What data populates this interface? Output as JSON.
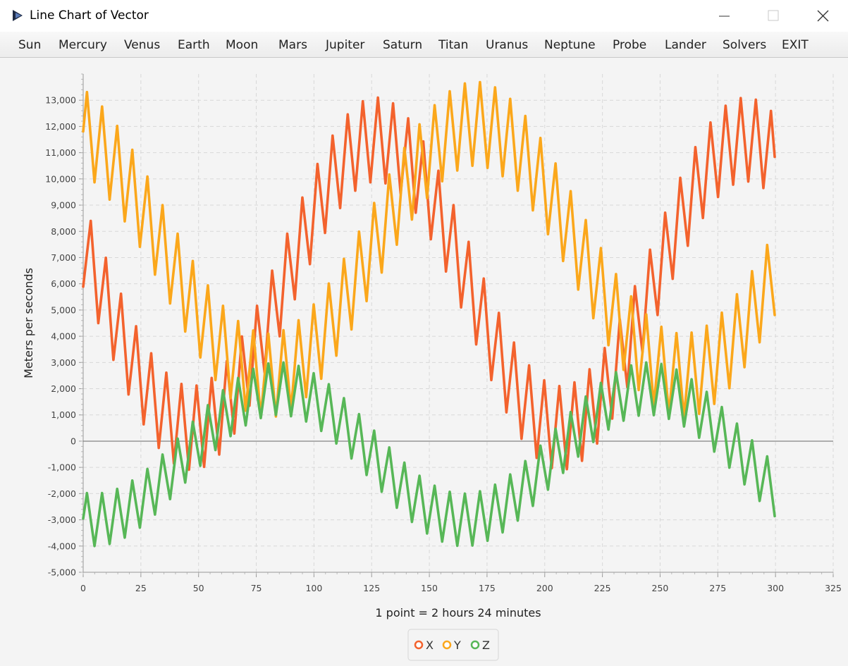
{
  "window": {
    "title": "Line Chart of Vector"
  },
  "menu": [
    "Sun",
    "Mercury",
    "Venus",
    "Earth",
    "Moon",
    "Mars",
    "Jupiter",
    "Saturn",
    "Titan",
    "Uranus",
    "Neptune",
    "Probe",
    "Lander",
    "Solvers",
    "EXIT"
  ],
  "chart_data": {
    "type": "line",
    "xlabel": "1 point = 2 hours 24 minutes",
    "ylabel": "Meters per seconds",
    "x": [
      0,
      1.64,
      3.28,
      4.91,
      6.55,
      8.19,
      9.83,
      11.46,
      13.1,
      14.74,
      16.38,
      18.01,
      19.65,
      21.29,
      22.93,
      24.56,
      26.2,
      27.84,
      29.48,
      31.11,
      32.75,
      34.39,
      36.03,
      37.66,
      39.3,
      40.94,
      42.58,
      44.21,
      45.85,
      47.49,
      49.13,
      50.76,
      52.4,
      54.04,
      55.68,
      57.31,
      58.95,
      60.59,
      62.23,
      63.86,
      65.5,
      67.14,
      68.78,
      70.41,
      72.05,
      73.69,
      75.33,
      76.96,
      78.6,
      80.24,
      81.88,
      83.51,
      85.15,
      86.79,
      88.43,
      90.06,
      91.7,
      93.34,
      94.98,
      96.61,
      98.25,
      99.89,
      101.53,
      103.16,
      104.8,
      106.44,
      108.08,
      109.71,
      111.35,
      112.99,
      114.63,
      116.26,
      117.9,
      119.54,
      121.18,
      122.81,
      124.45,
      126.09,
      127.73,
      129.36,
      131,
      132.64,
      134.28,
      135.91,
      137.55,
      139.19,
      140.83,
      142.46,
      144.1,
      145.74,
      147.38,
      149.01,
      150.65,
      152.29,
      153.93,
      155.56,
      157.2,
      158.84,
      160.48,
      162.11,
      163.75,
      165.39,
      167.03,
      168.66,
      170.3,
      171.94,
      173.58,
      175.21,
      176.85,
      178.49,
      180.13,
      181.76,
      183.4,
      185.04,
      186.68,
      188.31,
      189.95,
      191.59,
      193.23,
      194.86,
      196.5,
      198.14,
      199.78,
      201.41,
      203.05,
      204.69,
      206.33,
      207.96,
      209.6,
      211.24,
      212.88,
      214.51,
      216.15,
      217.79,
      219.43,
      221.06,
      222.7,
      224.34,
      225.98,
      227.61,
      229.25,
      230.89,
      232.53,
      234.16,
      235.8,
      237.44,
      239.08,
      240.71,
      242.35,
      243.99,
      245.63,
      247.26,
      248.9,
      250.54,
      252.18,
      253.81,
      255.45,
      257.09,
      258.73,
      260.36,
      262,
      263.64,
      265.28,
      266.91,
      268.55,
      270.19,
      271.83,
      273.46,
      275.1,
      276.74,
      278.38,
      280.01,
      281.65,
      283.29,
      284.93,
      286.56,
      288.2,
      289.84,
      291.48,
      293.11,
      294.75,
      296.39,
      298.03,
      299.66
    ],
    "series": [
      {
        "name": "X",
        "color": "#f3622d",
        "values": [
          5890,
          7150,
          8400,
          6450,
          4500,
          5740,
          6990,
          5040,
          3100,
          4360,
          5620,
          3700,
          1780,
          3070,
          4380,
          2500,
          640,
          1990,
          3350,
          1530,
          -260,
          1160,
          2610,
          870,
          -850,
          650,
          2180,
          530,
          -1090,
          500,
          2120,
          560,
          -980,
          710,
          2410,
          950,
          -510,
          1270,
          3050,
          1660,
          290,
          2130,
          3990,
          2660,
          1350,
          3260,
          5160,
          3890,
          2620,
          4550,
          6500,
          5250,
          4000,
          5950,
          7910,
          6660,
          5410,
          7350,
          9290,
          8020,
          6750,
          8660,
          10570,
          9260,
          7940,
          9800,
          11650,
          10280,
          8890,
          10690,
          12460,
          11020,
          9550,
          11260,
          12960,
          11420,
          9870,
          11500,
          13100,
          11480,
          9830,
          11370,
          12880,
          11170,
          9440,
          10880,
          12310,
          10520,
          8710,
          10080,
          11430,
          9580,
          7700,
          9010,
          10310,
          8390,
          6470,
          7740,
          9000,
          7050,
          5100,
          6350,
          7600,
          5640,
          3690,
          4940,
          6200,
          4260,
          2330,
          3610,
          4890,
          2990,
          1100,
          2430,
          3760,
          1920,
          90,
          1480,
          2890,
          1120,
          -640,
          830,
          2320,
          630,
          -1030,
          520,
          2100,
          510,
          -1070,
          580,
          2240,
          740,
          -750,
          980,
          2740,
          1310,
          -90,
          1720,
          3550,
          2200,
          860,
          2740,
          4640,
          3340,
          2050,
          3980,
          5910,
          4650,
          3390,
          5350,
          7300,
          6050,
          4810,
          6750,
          8710,
          7450,
          6190,
          8120,
          10040,
          8750,
          7450,
          9340,
          11210,
          9870,
          8510,
          10340,
          12150,
          10740,
          9310,
          11060,
          12790,
          11290,
          9780,
          11440,
          13080,
          11500,
          9900,
          11470,
          13020,
          11350,
          9650,
          11130,
          12590,
          10840
        ]
      },
      {
        "name": "Y",
        "color": "#fba71b",
        "values": [
          11810,
          13310,
          11600,
          9870,
          11320,
          12760,
          11000,
          9210,
          10620,
          12020,
          10200,
          8380,
          9750,
          11110,
          9260,
          7410,
          8750,
          10090,
          8220,
          6350,
          7670,
          9000,
          7130,
          5250,
          6580,
          7910,
          6050,
          4180,
          5520,
          6870,
          5030,
          3190,
          4560,
          5940,
          4130,
          2330,
          3740,
          5160,
          3390,
          1640,
          3100,
          4580,
          2870,
          1160,
          2680,
          4220,
          2560,
          930,
          2500,
          4100,
          2510,
          940,
          2580,
          4230,
          2710,
          1190,
          2890,
          4610,
          3140,
          1680,
          3440,
          5210,
          3790,
          2380,
          4190,
          6010,
          4630,
          3260,
          5100,
          6950,
          5600,
          4260,
          6120,
          7990,
          6660,
          5340,
          7210,
          9080,
          7760,
          6430,
          8300,
          10170,
          8830,
          7490,
          9340,
          11180,
          9820,
          8450,
          10270,
          12080,
          10680,
          9270,
          11050,
          12810,
          11370,
          9910,
          11630,
          13340,
          11840,
          10320,
          11990,
          13640,
          12080,
          10500,
          12100,
          13690,
          12060,
          10420,
          11970,
          13490,
          11800,
          10100,
          11590,
          13050,
          11310,
          9550,
          10980,
          12400,
          10610,
          8800,
          10190,
          11560,
          9730,
          7890,
          9240,
          10590,
          8730,
          6870,
          8200,
          9530,
          7660,
          5780,
          7110,
          8430,
          6560,
          4690,
          6020,
          7360,
          5510,
          3660,
          5010,
          6370,
          4550,
          2720,
          4110,
          5520,
          3720,
          1950,
          3380,
          4830,
          3090,
          1370,
          2860,
          4360,
          2680,
          1010,
          2560,
          4120,
          2510,
          900,
          2510,
          4140,
          2580,
          1040,
          2710,
          4400,
          2900,
          1420,
          3150,
          4900,
          3460,
          2020,
          3810,
          5600,
          4200,
          2820,
          4650,
          6480,
          5120,
          3770,
          5620,
          7480,
          6140,
          4810
        ]
      },
      {
        "name": "Z",
        "color": "#57b757",
        "values": [
          -2950,
          -1980,
          -3000,
          -4000,
          -3000,
          -1980,
          -2960,
          -3920,
          -2880,
          -1820,
          -2760,
          -3680,
          -2600,
          -1500,
          -2400,
          -3300,
          -2180,
          -1060,
          -1930,
          -2800,
          -1660,
          -510,
          -1360,
          -2210,
          -1060,
          100,
          -740,
          -1580,
          -420,
          740,
          -100,
          -940,
          220,
          1370,
          520,
          -340,
          800,
          1940,
          1070,
          190,
          1300,
          2410,
          1510,
          600,
          1680,
          2760,
          1820,
          880,
          1920,
          2960,
          1980,
          1000,
          2000,
          3000,
          1980,
          950,
          1920,
          2870,
          1810,
          750,
          1670,
          2590,
          1490,
          390,
          1280,
          2170,
          1040,
          -90,
          780,
          1640,
          490,
          -660,
          190,
          1030,
          -130,
          -1290,
          -450,
          400,
          -770,
          -1930,
          -1080,
          -240,
          -1390,
          -2540,
          -1680,
          -820,
          -1960,
          -3080,
          -2200,
          -1320,
          -2430,
          -3520,
          -2610,
          -1700,
          -2770,
          -3830,
          -2880,
          -1930,
          -2960,
          -3990,
          -3000,
          -2000,
          -2990,
          -3980,
          -2950,
          -1910,
          -2860,
          -3800,
          -2740,
          -1660,
          -2570,
          -3480,
          -2380,
          -1270,
          -2150,
          -3030,
          -1900,
          -760,
          -1620,
          -2470,
          -1320,
          -170,
          -1010,
          -1850,
          -690,
          470,
          -370,
          -1210,
          -50,
          1110,
          260,
          -590,
          560,
          1700,
          840,
          -30,
          1100,
          2220,
          1330,
          440,
          1540,
          2630,
          1710,
          780,
          1840,
          2890,
          1930,
          970,
          1990,
          3000,
          2000,
          990,
          1970,
          2940,
          1900,
          850,
          1790,
          2730,
          1650,
          560,
          1470,
          2360,
          1250,
          130,
          1010,
          1880,
          740,
          -400,
          450,
          1300,
          150,
          -1010,
          -170,
          670,
          -490,
          -1650,
          -810,
          30,
          -1130,
          -2280,
          -1430,
          -580,
          -1720,
          -2860
        ]
      }
    ],
    "xlim": [
      0,
      325
    ],
    "xticks": [
      0,
      25,
      50,
      75,
      100,
      125,
      150,
      175,
      200,
      225,
      250,
      275,
      300,
      325
    ],
    "ylim": [
      -5000,
      14000
    ],
    "yticks": [
      {
        "value": -5000,
        "label": "-5,000"
      },
      {
        "value": -4000,
        "label": "-4,000"
      },
      {
        "value": -3000,
        "label": "-3,000"
      },
      {
        "value": -2000,
        "label": "-2,000"
      },
      {
        "value": -1000,
        "label": "-1,000"
      },
      0,
      {
        "value": 1000,
        "label": "1,000"
      },
      {
        "value": 2000,
        "label": "2,000"
      },
      {
        "value": 3000,
        "label": "3,000"
      },
      {
        "value": 4000,
        "label": "4,000"
      },
      {
        "value": 5000,
        "label": "5,000"
      },
      {
        "value": 6000,
        "label": "6,000"
      },
      {
        "value": 7000,
        "label": "7,000"
      },
      {
        "value": 8000,
        "label": "8,000"
      },
      {
        "value": 9000,
        "label": "9,000"
      },
      {
        "value": 10000,
        "label": "10,000"
      },
      {
        "value": 11000,
        "label": "11,000"
      },
      {
        "value": 12000,
        "label": "12,000"
      },
      {
        "value": 13000,
        "label": "13,000"
      }
    ],
    "grid": true,
    "legend": "bottom"
  }
}
